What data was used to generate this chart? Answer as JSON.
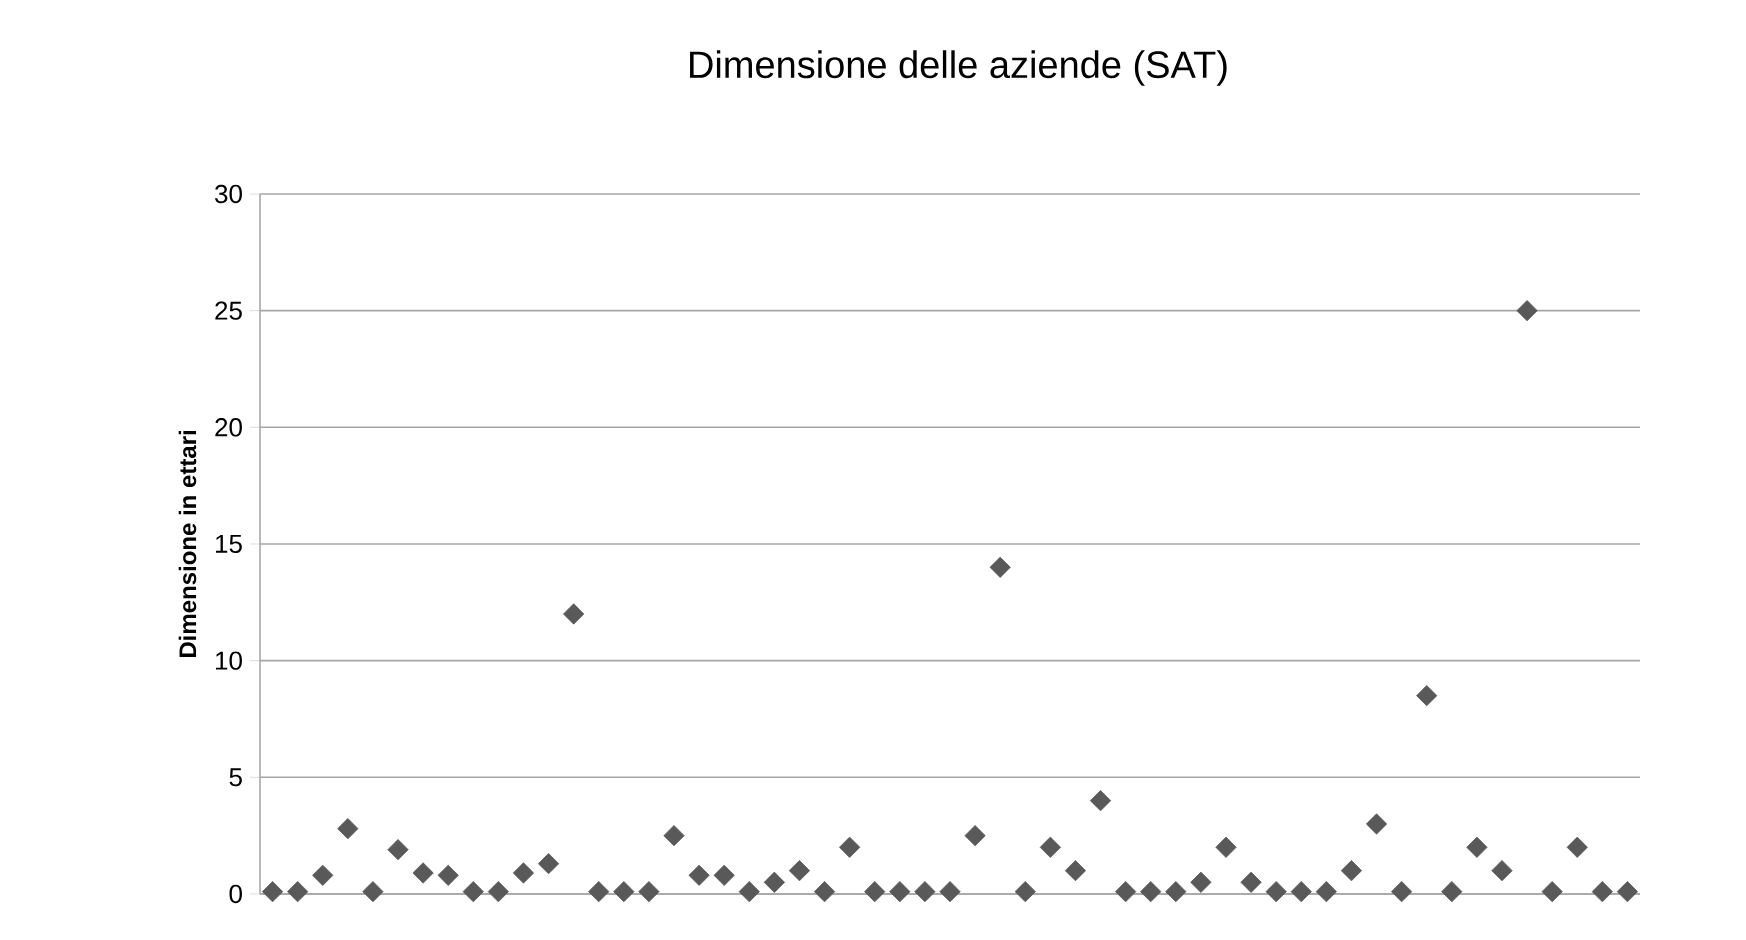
{
  "chart_data": {
    "type": "scatter",
    "title": "Dimensione delle aziende (SAT)",
    "ylabel": "Dimensione in ettari",
    "categories": [
      null,
      null,
      null,
      null,
      null,
      null,
      null,
      null,
      null,
      null,
      null,
      null,
      null,
      null,
      null,
      null,
      null,
      null,
      null,
      null,
      null,
      null,
      null,
      null,
      null,
      null,
      null,
      null,
      null,
      null,
      null,
      null,
      null,
      null,
      null,
      null,
      null,
      null,
      null,
      null,
      null,
      null,
      null,
      null,
      null,
      null,
      null,
      null,
      null,
      null,
      null,
      null,
      null,
      null,
      null
    ],
    "values": [
      0.1,
      0.1,
      0.8,
      2.8,
      0.1,
      1.9,
      0.9,
      0.8,
      0.1,
      0.1,
      0.9,
      1.3,
      12,
      0.1,
      0.1,
      0.1,
      2.5,
      0.8,
      0.8,
      0.1,
      0.5,
      1,
      0.1,
      2,
      0.1,
      0.1,
      0.1,
      0.1,
      2.5,
      14,
      0.1,
      2,
      1,
      4,
      0.1,
      0.1,
      0.1,
      0.5,
      2,
      0.5,
      0.1,
      0.1,
      0.1,
      1,
      3,
      0.1,
      8.5,
      0.1,
      2,
      1,
      25,
      0.1,
      2,
      0.1,
      0.1
    ],
    "color": "#595959",
    "marker": "diamond",
    "ylim": [
      0,
      30
    ],
    "yticks": [
      0,
      5,
      10,
      15,
      20,
      25,
      30
    ],
    "grid": "y"
  }
}
